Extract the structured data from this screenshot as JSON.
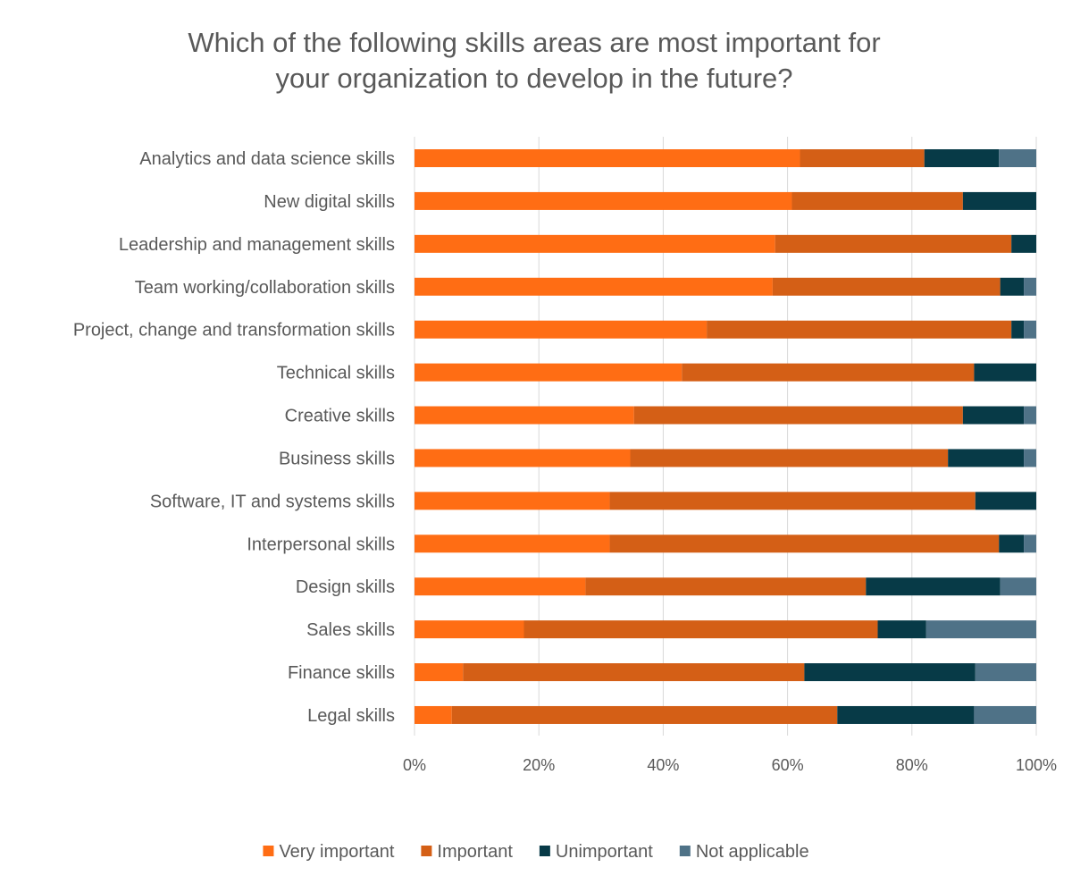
{
  "chart_data": {
    "type": "bar",
    "orientation": "horizontal",
    "stacked": "percent",
    "title_lines": [
      "Which of the following skills areas are most important for",
      "your organization to develop in the future?"
    ],
    "categories": [
      "Analytics and data science skills",
      "New digital skills",
      "Leadership and management skills",
      "Team working/collaboration skills",
      "Project, change and transformation skills",
      "Technical skills",
      "Creative skills",
      "Business skills",
      "Software, IT and systems skills",
      "Interpersonal skills",
      "Design skills",
      "Sales skills",
      "Finance skills",
      "Legal skills"
    ],
    "series": [
      {
        "name": "Very important",
        "color": "#ff6d14",
        "values": [
          62,
          60.7,
          58,
          57.6,
          47,
          43,
          35.3,
          34.7,
          31.4,
          31.4,
          27.5,
          17.6,
          7.8,
          6
        ]
      },
      {
        "name": "Important",
        "color": "#d45f16",
        "values": [
          20,
          27.5,
          38,
          36.6,
          49,
          47,
          52.9,
          51.1,
          58.8,
          62.6,
          45.1,
          56.9,
          54.9,
          62
        ]
      },
      {
        "name": "Unimportant",
        "color": "#073a47",
        "values": [
          12,
          11.8,
          4,
          3.8,
          2,
          10,
          9.8,
          12.2,
          9.8,
          4,
          21.6,
          7.8,
          27.5,
          22
        ]
      },
      {
        "name": "Not applicable",
        "color": "#4f7287",
        "values": [
          6,
          0,
          0,
          2,
          2,
          0,
          2,
          2,
          0,
          2,
          5.8,
          17.7,
          9.8,
          10
        ]
      }
    ],
    "xlim": [
      0,
      100
    ],
    "x_ticks": [
      "0%",
      "20%",
      "40%",
      "60%",
      "80%",
      "100%"
    ],
    "grid": true,
    "legend_position": "bottom"
  }
}
